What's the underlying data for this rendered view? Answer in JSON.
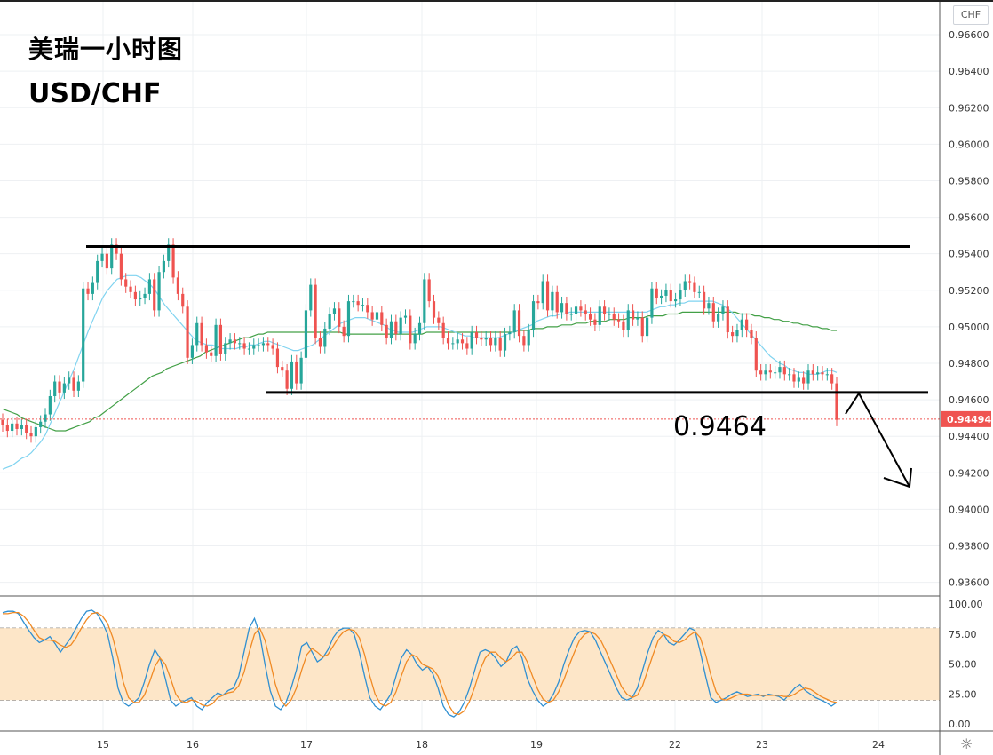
{
  "annotation": {
    "title": "美瑞一小时图",
    "subtitle": "USD/CHF",
    "level_label": "0.9464"
  },
  "symbol_badge": "CHF",
  "current_price_label": "0.94494",
  "colors": {
    "up": "#26a69a",
    "down": "#ef5350",
    "ma_fast": "#7fd3f0",
    "ma_slow": "#43a047",
    "stoch_k": "#2f8fd1",
    "stoch_d": "#f08a24",
    "stoch_band": "#fde6c8",
    "price_line": "#ef5350"
  },
  "icons": [
    "settings-gear-icon"
  ],
  "chart_data": [
    {
      "type": "candlestick",
      "title": "",
      "y_axis_ticks": [
        "0.96600",
        "0.96400",
        "0.96200",
        "0.96000",
        "0.95800",
        "0.95600",
        "0.95400",
        "0.95200",
        "0.95000",
        "0.94800",
        "0.94600",
        "0.94400",
        "0.94200",
        "0.94000",
        "0.93800",
        "0.93600"
      ],
      "ylim": [
        0.9353,
        0.9679
      ],
      "x_tick_labels": [
        "15",
        "16",
        "17",
        "18",
        "19",
        "22",
        "23",
        "24"
      ],
      "close": [
        0.9446,
        0.9443,
        0.9447,
        0.9444,
        0.9446,
        0.9442,
        0.944,
        0.9445,
        0.9448,
        0.9452,
        0.9462,
        0.947,
        0.9464,
        0.9469,
        0.9472,
        0.9465,
        0.947,
        0.9521,
        0.9518,
        0.9524,
        0.9536,
        0.954,
        0.9532,
        0.9545,
        0.954,
        0.9526,
        0.9522,
        0.9519,
        0.9515,
        0.9516,
        0.9518,
        0.9526,
        0.9509,
        0.953,
        0.9536,
        0.9545,
        0.9527,
        0.9518,
        0.9511,
        0.9483,
        0.949,
        0.9502,
        0.949,
        0.9486,
        0.9484,
        0.9501,
        0.9485,
        0.9491,
        0.9493,
        0.9491,
        0.9491,
        0.9488,
        0.9488,
        0.949,
        0.949,
        0.9491,
        0.949,
        0.9488,
        0.9478,
        0.9476,
        0.9466,
        0.9481,
        0.9469,
        0.9483,
        0.9509,
        0.9523,
        0.9494,
        0.9489,
        0.9499,
        0.9507,
        0.951,
        0.95,
        0.9495,
        0.9514,
        0.9514,
        0.9512,
        0.9512,
        0.9508,
        0.9504,
        0.9508,
        0.9501,
        0.9494,
        0.9503,
        0.9496,
        0.9505,
        0.9506,
        0.9491,
        0.9496,
        0.9502,
        0.9526,
        0.9514,
        0.9505,
        0.9502,
        0.9494,
        0.9491,
        0.9491,
        0.9493,
        0.9491,
        0.9488,
        0.9497,
        0.9494,
        0.9493,
        0.9494,
        0.949,
        0.9494,
        0.9487,
        0.9496,
        0.9497,
        0.9509,
        0.9495,
        0.949,
        0.9498,
        0.9514,
        0.9513,
        0.9525,
        0.9509,
        0.9519,
        0.9508,
        0.9513,
        0.9507,
        0.9507,
        0.9511,
        0.9509,
        0.9507,
        0.9504,
        0.9501,
        0.9511,
        0.9507,
        0.9507,
        0.9504,
        0.9503,
        0.9498,
        0.9509,
        0.9504,
        0.9505,
        0.9495,
        0.9505,
        0.9521,
        0.9516,
        0.9517,
        0.952,
        0.9514,
        0.9515,
        0.952,
        0.9525,
        0.9524,
        0.9519,
        0.9519,
        0.951,
        0.9513,
        0.9503,
        0.9507,
        0.9511,
        0.9497,
        0.9495,
        0.9498,
        0.9504,
        0.9498,
        0.9494,
        0.9476,
        0.9474,
        0.9476,
        0.9475,
        0.9475,
        0.9478,
        0.9474,
        0.9474,
        0.947,
        0.9472,
        0.9469,
        0.9476,
        0.9474,
        0.9475,
        0.9474,
        0.9474,
        0.9469,
        0.9449
      ],
      "ma_fast": [
        0.9422,
        0.9423,
        0.9424,
        0.9426,
        0.9428,
        0.9429,
        0.9431,
        0.9434,
        0.9437,
        0.9441,
        0.9447,
        0.9453,
        0.9459,
        0.9465,
        0.9471,
        0.9477,
        0.9484,
        0.9491,
        0.9498,
        0.9504,
        0.951,
        0.9516,
        0.952,
        0.9523,
        0.9526,
        0.9527,
        0.9528,
        0.9528,
        0.9528,
        0.9527,
        0.9525,
        0.9523,
        0.952,
        0.9516,
        0.9512,
        0.9509,
        0.9506,
        0.9503,
        0.95,
        0.9497,
        0.9494,
        0.9492,
        0.9491,
        0.949,
        0.949,
        0.9489,
        0.9488,
        0.9488,
        0.9488,
        0.9488,
        0.9489,
        0.9489,
        0.949,
        0.949,
        0.9491,
        0.9492,
        0.9492,
        0.9491,
        0.949,
        0.9489,
        0.9488,
        0.9487,
        0.9487,
        0.9488,
        0.9489,
        0.949,
        0.9492,
        0.9494,
        0.9496,
        0.9498,
        0.95,
        0.9502,
        0.9503,
        0.9504,
        0.9505,
        0.9505,
        0.9505,
        0.9504,
        0.9503,
        0.9502,
        0.9501,
        0.9499,
        0.9498,
        0.9497,
        0.9497,
        0.9497,
        0.9497,
        0.9498,
        0.9499,
        0.95,
        0.95,
        0.95,
        0.95,
        0.9499,
        0.9498,
        0.9497,
        0.9496,
        0.9495,
        0.9495,
        0.9494,
        0.9494,
        0.9494,
        0.9494,
        0.9494,
        0.9494,
        0.9495,
        0.9496,
        0.9497,
        0.9498,
        0.9499,
        0.95,
        0.9501,
        0.9503,
        0.9504,
        0.9505,
        0.9506,
        0.9506,
        0.9507,
        0.9507,
        0.9508,
        0.9508,
        0.9508,
        0.9508,
        0.9508,
        0.9508,
        0.9508,
        0.9508,
        0.9508,
        0.9508,
        0.9508,
        0.9508,
        0.9508,
        0.9508,
        0.9508,
        0.9508,
        0.9508,
        0.9509,
        0.951,
        0.9511,
        0.9511,
        0.9512,
        0.9512,
        0.9513,
        0.9513,
        0.9514,
        0.9514,
        0.9514,
        0.9514,
        0.9514,
        0.9514,
        0.9513,
        0.9512,
        0.951,
        0.9508,
        0.9505,
        0.9502,
        0.9499,
        0.9496,
        0.9493,
        0.949,
        0.9487,
        0.9484,
        0.9482,
        0.948,
        0.9479,
        0.9477,
        0.9476,
        0.9475,
        0.9475,
        0.9474,
        0.9474,
        0.9474,
        0.9475,
        0.9476,
        0.9476,
        0.9475
      ],
      "ma_slow": [
        0.9455,
        0.9454,
        0.9453,
        0.9452,
        0.945,
        0.9449,
        0.9448,
        0.9447,
        0.9446,
        0.9445,
        0.9444,
        0.9443,
        0.9443,
        0.9443,
        0.9444,
        0.9445,
        0.9446,
        0.9447,
        0.9448,
        0.945,
        0.9451,
        0.9453,
        0.9455,
        0.9457,
        0.9459,
        0.9461,
        0.9463,
        0.9465,
        0.9467,
        0.9469,
        0.9471,
        0.9473,
        0.9474,
        0.9475,
        0.9477,
        0.9478,
        0.9479,
        0.948,
        0.9481,
        0.9482,
        0.9483,
        0.9484,
        0.9486,
        0.9487,
        0.9488,
        0.9489,
        0.949,
        0.9491,
        0.9492,
        0.9493,
        0.9494,
        0.9494,
        0.9495,
        0.9496,
        0.9496,
        0.9497,
        0.9497,
        0.9497,
        0.9497,
        0.9497,
        0.9497,
        0.9497,
        0.9497,
        0.9497,
        0.9497,
        0.9497,
        0.9497,
        0.9497,
        0.9497,
        0.9497,
        0.9497,
        0.9496,
        0.9496,
        0.9496,
        0.9496,
        0.9496,
        0.9496,
        0.9496,
        0.9496,
        0.9496,
        0.9496,
        0.9496,
        0.9496,
        0.9496,
        0.9496,
        0.9496,
        0.9496,
        0.9496,
        0.9497,
        0.9497,
        0.9497,
        0.9497,
        0.9497,
        0.9497,
        0.9497,
        0.9497,
        0.9497,
        0.9497,
        0.9497,
        0.9497,
        0.9497,
        0.9497,
        0.9497,
        0.9497,
        0.9497,
        0.9497,
        0.9497,
        0.9498,
        0.9498,
        0.9498,
        0.9499,
        0.9499,
        0.9499,
        0.95,
        0.95,
        0.95,
        0.9501,
        0.9501,
        0.9501,
        0.9502,
        0.9502,
        0.9502,
        0.9503,
        0.9503,
        0.9503,
        0.9503,
        0.9504,
        0.9504,
        0.9504,
        0.9504,
        0.9505,
        0.9505,
        0.9505,
        0.9505,
        0.9506,
        0.9506,
        0.9506,
        0.9506,
        0.9507,
        0.9507,
        0.9507,
        0.9508,
        0.9508,
        0.9508,
        0.9508,
        0.9508,
        0.9508,
        0.9508,
        0.9508,
        0.9508,
        0.9508,
        0.9508,
        0.9508,
        0.9507,
        0.9507,
        0.9507,
        0.9506,
        0.9506,
        0.9505,
        0.9505,
        0.9504,
        0.9504,
        0.9503,
        0.9503,
        0.9502,
        0.9502,
        0.9501,
        0.9501,
        0.95,
        0.95,
        0.9499,
        0.9499,
        0.9498,
        0.9498
      ],
      "resistance": 0.9544,
      "support": 0.9464,
      "current_price": 0.94494
    },
    {
      "type": "line",
      "title": "",
      "y_axis_ticks": [
        "100.00",
        "75.00",
        "50.00",
        "25.00",
        "0.00"
      ],
      "ylim": [
        -5,
        106
      ],
      "bands": [
        20,
        80
      ],
      "series": [
        {
          "name": "",
          "role": "k",
          "values": [
            93,
            94,
            94,
            92,
            85,
            78,
            72,
            68,
            70,
            73,
            67,
            60,
            66,
            72,
            80,
            88,
            94,
            95,
            92,
            85,
            75,
            55,
            30,
            18,
            15,
            18,
            22,
            35,
            50,
            62,
            55,
            38,
            20,
            15,
            18,
            20,
            22,
            15,
            12,
            18,
            22,
            26,
            24,
            28,
            30,
            40,
            60,
            80,
            88,
            75,
            50,
            28,
            15,
            12,
            18,
            30,
            45,
            65,
            68,
            60,
            52,
            55,
            62,
            72,
            78,
            80,
            80,
            75,
            60,
            40,
            22,
            15,
            12,
            18,
            25,
            40,
            55,
            62,
            58,
            50,
            45,
            48,
            42,
            30,
            15,
            8,
            6,
            10,
            18,
            30,
            45,
            60,
            62,
            60,
            55,
            48,
            52,
            62,
            65,
            55,
            38,
            28,
            20,
            15,
            18,
            25,
            35,
            50,
            62,
            72,
            77,
            78,
            77,
            70,
            60,
            50,
            40,
            30,
            22,
            20,
            22,
            30,
            45,
            60,
            72,
            78,
            75,
            68,
            66,
            70,
            75,
            80,
            78,
            60,
            40,
            22,
            18,
            20,
            22,
            25,
            27,
            25,
            23,
            24,
            25,
            23,
            25,
            24,
            23,
            20,
            25,
            30,
            33,
            28,
            25,
            22,
            20,
            18,
            15,
            18
          ]
        },
        {
          "name": "",
          "role": "d",
          "values": [
            92,
            92,
            93,
            93,
            90,
            85,
            78,
            72,
            70,
            70,
            69,
            66,
            64,
            66,
            72,
            80,
            87,
            92,
            93,
            90,
            84,
            72,
            55,
            35,
            22,
            18,
            18,
            24,
            35,
            48,
            55,
            50,
            38,
            25,
            19,
            18,
            20,
            19,
            16,
            15,
            17,
            22,
            24,
            26,
            27,
            32,
            43,
            60,
            75,
            80,
            70,
            52,
            33,
            20,
            15,
            20,
            30,
            45,
            58,
            63,
            60,
            56,
            58,
            65,
            72,
            77,
            79,
            78,
            72,
            58,
            40,
            25,
            17,
            15,
            18,
            27,
            40,
            52,
            58,
            56,
            50,
            48,
            46,
            40,
            28,
            16,
            9,
            8,
            11,
            19,
            31,
            45,
            55,
            60,
            60,
            55,
            52,
            55,
            60,
            60,
            52,
            40,
            29,
            21,
            18,
            20,
            27,
            37,
            49,
            60,
            70,
            75,
            77,
            75,
            70,
            61,
            51,
            41,
            31,
            25,
            22,
            24,
            32,
            45,
            58,
            70,
            75,
            73,
            69,
            68,
            70,
            74,
            77,
            72,
            58,
            41,
            27,
            21,
            20,
            22,
            24,
            25,
            25,
            24,
            24,
            24,
            24,
            24,
            24,
            23,
            23,
            25,
            28,
            30,
            29,
            26,
            23,
            21,
            19,
            18
          ]
        }
      ]
    }
  ]
}
